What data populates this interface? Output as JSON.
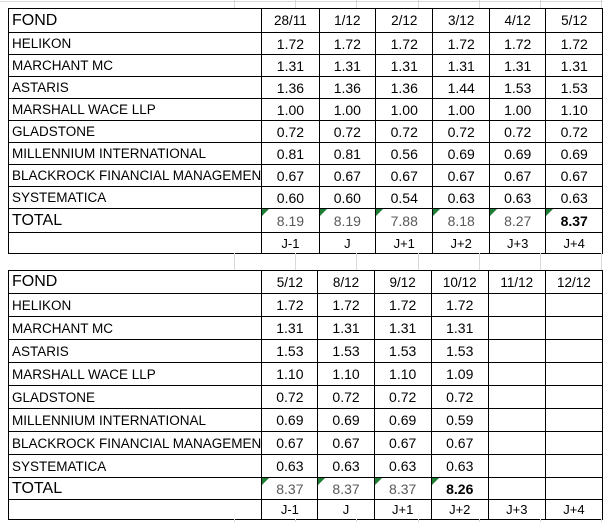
{
  "colors": {
    "border": "#000000",
    "gridline": "#d9d9d9",
    "flag_green": "#1e7e34",
    "total_text": "#595959",
    "text": "#000000"
  },
  "tables": [
    {
      "header_label": "FOND",
      "dates": [
        "28/11",
        "1/12",
        "2/12",
        "3/12",
        "4/12",
        "5/12"
      ],
      "rows": [
        {
          "label": "HELIKON",
          "values": [
            "1.72",
            "1.72",
            "1.72",
            "1.72",
            "1.72",
            "1.72"
          ]
        },
        {
          "label": "MARCHANT MC",
          "values": [
            "1.31",
            "1.31",
            "1.31",
            "1.31",
            "1.31",
            "1.31"
          ]
        },
        {
          "label": "ASTARIS",
          "values": [
            "1.36",
            "1.36",
            "1.36",
            "1.44",
            "1.53",
            "1.53"
          ]
        },
        {
          "label": "MARSHALL WACE LLP",
          "values": [
            "1.00",
            "1.00",
            "1.00",
            "1.00",
            "1.00",
            "1.10"
          ]
        },
        {
          "label": "GLADSTONE",
          "values": [
            "0.72",
            "0.72",
            "0.72",
            "0.72",
            "0.72",
            "0.72"
          ]
        },
        {
          "label": "MILLENNIUM INTERNATIONAL",
          "values": [
            "0.81",
            "0.81",
            "0.56",
            "0.69",
            "0.69",
            "0.69"
          ]
        },
        {
          "label": "BLACKROCK FINANCIAL MANAGEMEN",
          "values": [
            "0.67",
            "0.67",
            "0.67",
            "0.67",
            "0.67",
            "0.67"
          ]
        },
        {
          "label": "SYSTEMATICA",
          "values": [
            "0.60",
            "0.60",
            "0.54",
            "0.63",
            "0.63",
            "0.63"
          ]
        }
      ],
      "total_label": "TOTAL",
      "totals": [
        "8.19",
        "8.19",
        "7.88",
        "8.18",
        "8.27",
        "8.37"
      ],
      "total_bold_index": 5,
      "total_flags": [
        true,
        true,
        true,
        true,
        true,
        true
      ],
      "footer": [
        "J-1",
        "J",
        "J+1",
        "J+2",
        "J+3",
        "J+4"
      ]
    },
    {
      "header_label": "FOND",
      "dates": [
        "5/12",
        "8/12",
        "9/12",
        "10/12",
        "11/12",
        "12/12"
      ],
      "rows": [
        {
          "label": "HELIKON",
          "values": [
            "1.72",
            "1.72",
            "1.72",
            "1.72",
            "",
            ""
          ]
        },
        {
          "label": "MARCHANT MC",
          "values": [
            "1.31",
            "1.31",
            "1.31",
            "1.31",
            "",
            ""
          ]
        },
        {
          "label": "ASTARIS",
          "values": [
            "1.53",
            "1.53",
            "1.53",
            "1.53",
            "",
            ""
          ]
        },
        {
          "label": "MARSHALL WACE LLP",
          "values": [
            "1.10",
            "1.10",
            "1.10",
            "1.09",
            "",
            ""
          ]
        },
        {
          "label": "GLADSTONE",
          "values": [
            "0.72",
            "0.72",
            "0.72",
            "0.72",
            "",
            ""
          ]
        },
        {
          "label": "MILLENNIUM INTERNATIONAL",
          "values": [
            "0.69",
            "0.69",
            "0.69",
            "0.59",
            "",
            ""
          ]
        },
        {
          "label": "BLACKROCK FINANCIAL MANAGEMEN",
          "values": [
            "0.67",
            "0.67",
            "0.67",
            "0.67",
            "",
            ""
          ]
        },
        {
          "label": "SYSTEMATICA",
          "values": [
            "0.63",
            "0.63",
            "0.63",
            "0.63",
            "",
            ""
          ]
        }
      ],
      "total_label": "TOTAL",
      "totals": [
        "8.37",
        "8.37",
        "8.37",
        "8.26",
        "",
        ""
      ],
      "total_bold_index": 3,
      "total_flags": [
        true,
        true,
        true,
        true,
        false,
        false
      ],
      "footer": [
        "J-1",
        "J",
        "J+1",
        "J+2",
        "J+3",
        "J+4"
      ]
    }
  ]
}
